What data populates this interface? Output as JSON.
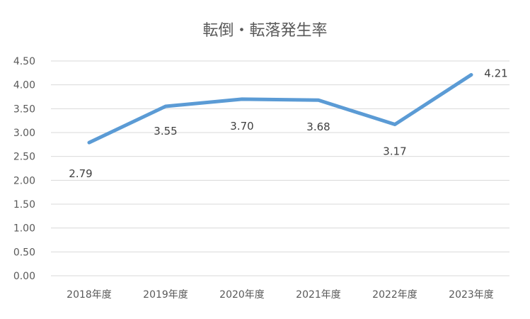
{
  "chart_data": {
    "type": "line",
    "title": "転倒・転落発生率",
    "categories": [
      "2018年度",
      "2019年度",
      "2020年度",
      "2021年度",
      "2022年度",
      "2023年度"
    ],
    "series": [
      {
        "values": [
          2.79,
          3.55,
          3.7,
          3.68,
          3.17,
          4.21
        ],
        "data_labels": [
          "2.79",
          "3.55",
          "3.70",
          "3.68",
          "3.17",
          "4.21"
        ],
        "color": "#5b9bd5"
      }
    ],
    "ylim": [
      0,
      4.5
    ],
    "yticks": [
      "0.00",
      "0.50",
      "1.00",
      "1.50",
      "2.00",
      "2.50",
      "3.00",
      "3.50",
      "4.00",
      "4.50"
    ],
    "grid": true,
    "legend": "none"
  }
}
